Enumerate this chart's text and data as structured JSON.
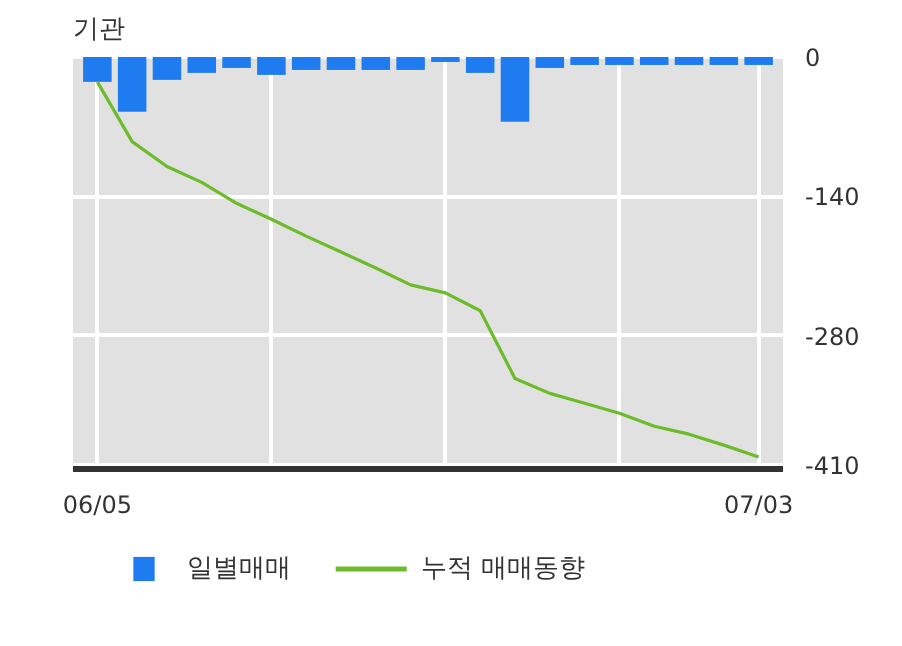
{
  "chart_data": {
    "type": "bar",
    "title": "기관",
    "categories": [
      "06/05",
      null,
      null,
      null,
      null,
      null,
      null,
      null,
      null,
      null,
      null,
      null,
      null,
      null,
      null,
      null,
      null,
      null,
      null,
      "07/03"
    ],
    "series": [
      {
        "name": "일별매매",
        "color": "#1e7cf0",
        "values": [
          -25,
          -55,
          -23,
          -16,
          -11,
          -18,
          -13,
          -13,
          -13,
          -13,
          -5,
          -16,
          -65,
          -11,
          -8,
          -8,
          -8,
          -8,
          -8,
          -8
        ]
      },
      {
        "name": "누적 매매동향",
        "type": "line",
        "color": "#6cbb2a",
        "values": [
          -25,
          -85,
          -110,
          -126,
          -147,
          -163,
          -180,
          -196,
          -212,
          -229,
          -237,
          -255,
          -323,
          -338,
          -348,
          -358,
          -371,
          -379,
          -390,
          -402
        ]
      }
    ],
    "ylim": [
      -414,
      2
    ],
    "yticks": [
      0,
      -140,
      -280,
      -410
    ],
    "grid": true,
    "legend": "bottom"
  }
}
